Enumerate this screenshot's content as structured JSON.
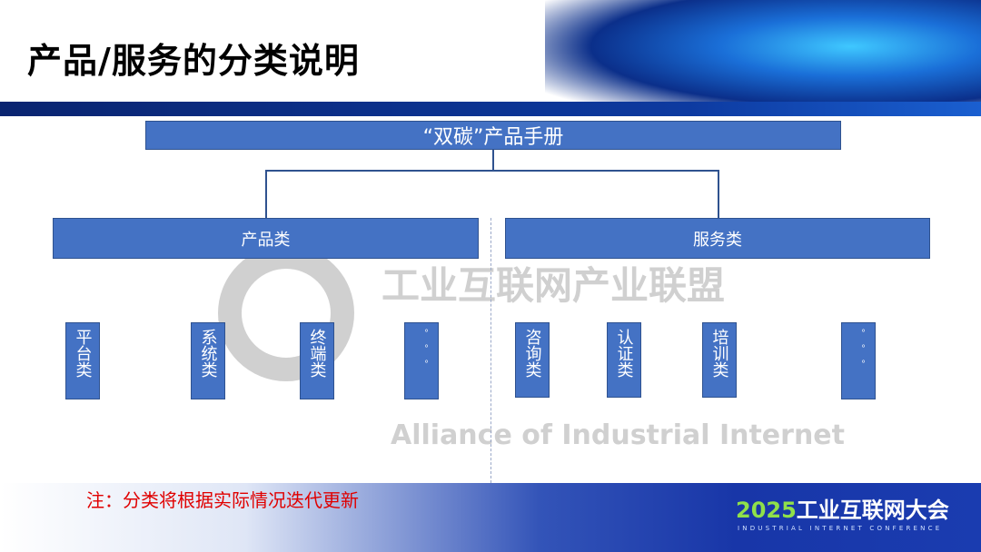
{
  "title": "产品/服务的分类说明",
  "root": "“双碳”产品手册",
  "categories": [
    {
      "label": "产品类",
      "items": [
        "平台类",
        "系统类",
        "终端类",
        "。。。"
      ]
    },
    {
      "label": "服务类",
      "items": [
        "咨询类",
        "认证类",
        "培训类",
        "。。。"
      ]
    }
  ],
  "watermark": {
    "cn": "工业互联网产业联盟",
    "en": "Alliance of Industrial Internet"
  },
  "note": "注：分类将根据实际情况迭代更新",
  "logo": {
    "year": "2025",
    "name": "工业互联网大会",
    "subtitle": "INDUSTRIAL INTERNET CONFERENCE"
  },
  "colors": {
    "box": "#4472c4",
    "note": "#e00000",
    "band": "#0a2470"
  }
}
